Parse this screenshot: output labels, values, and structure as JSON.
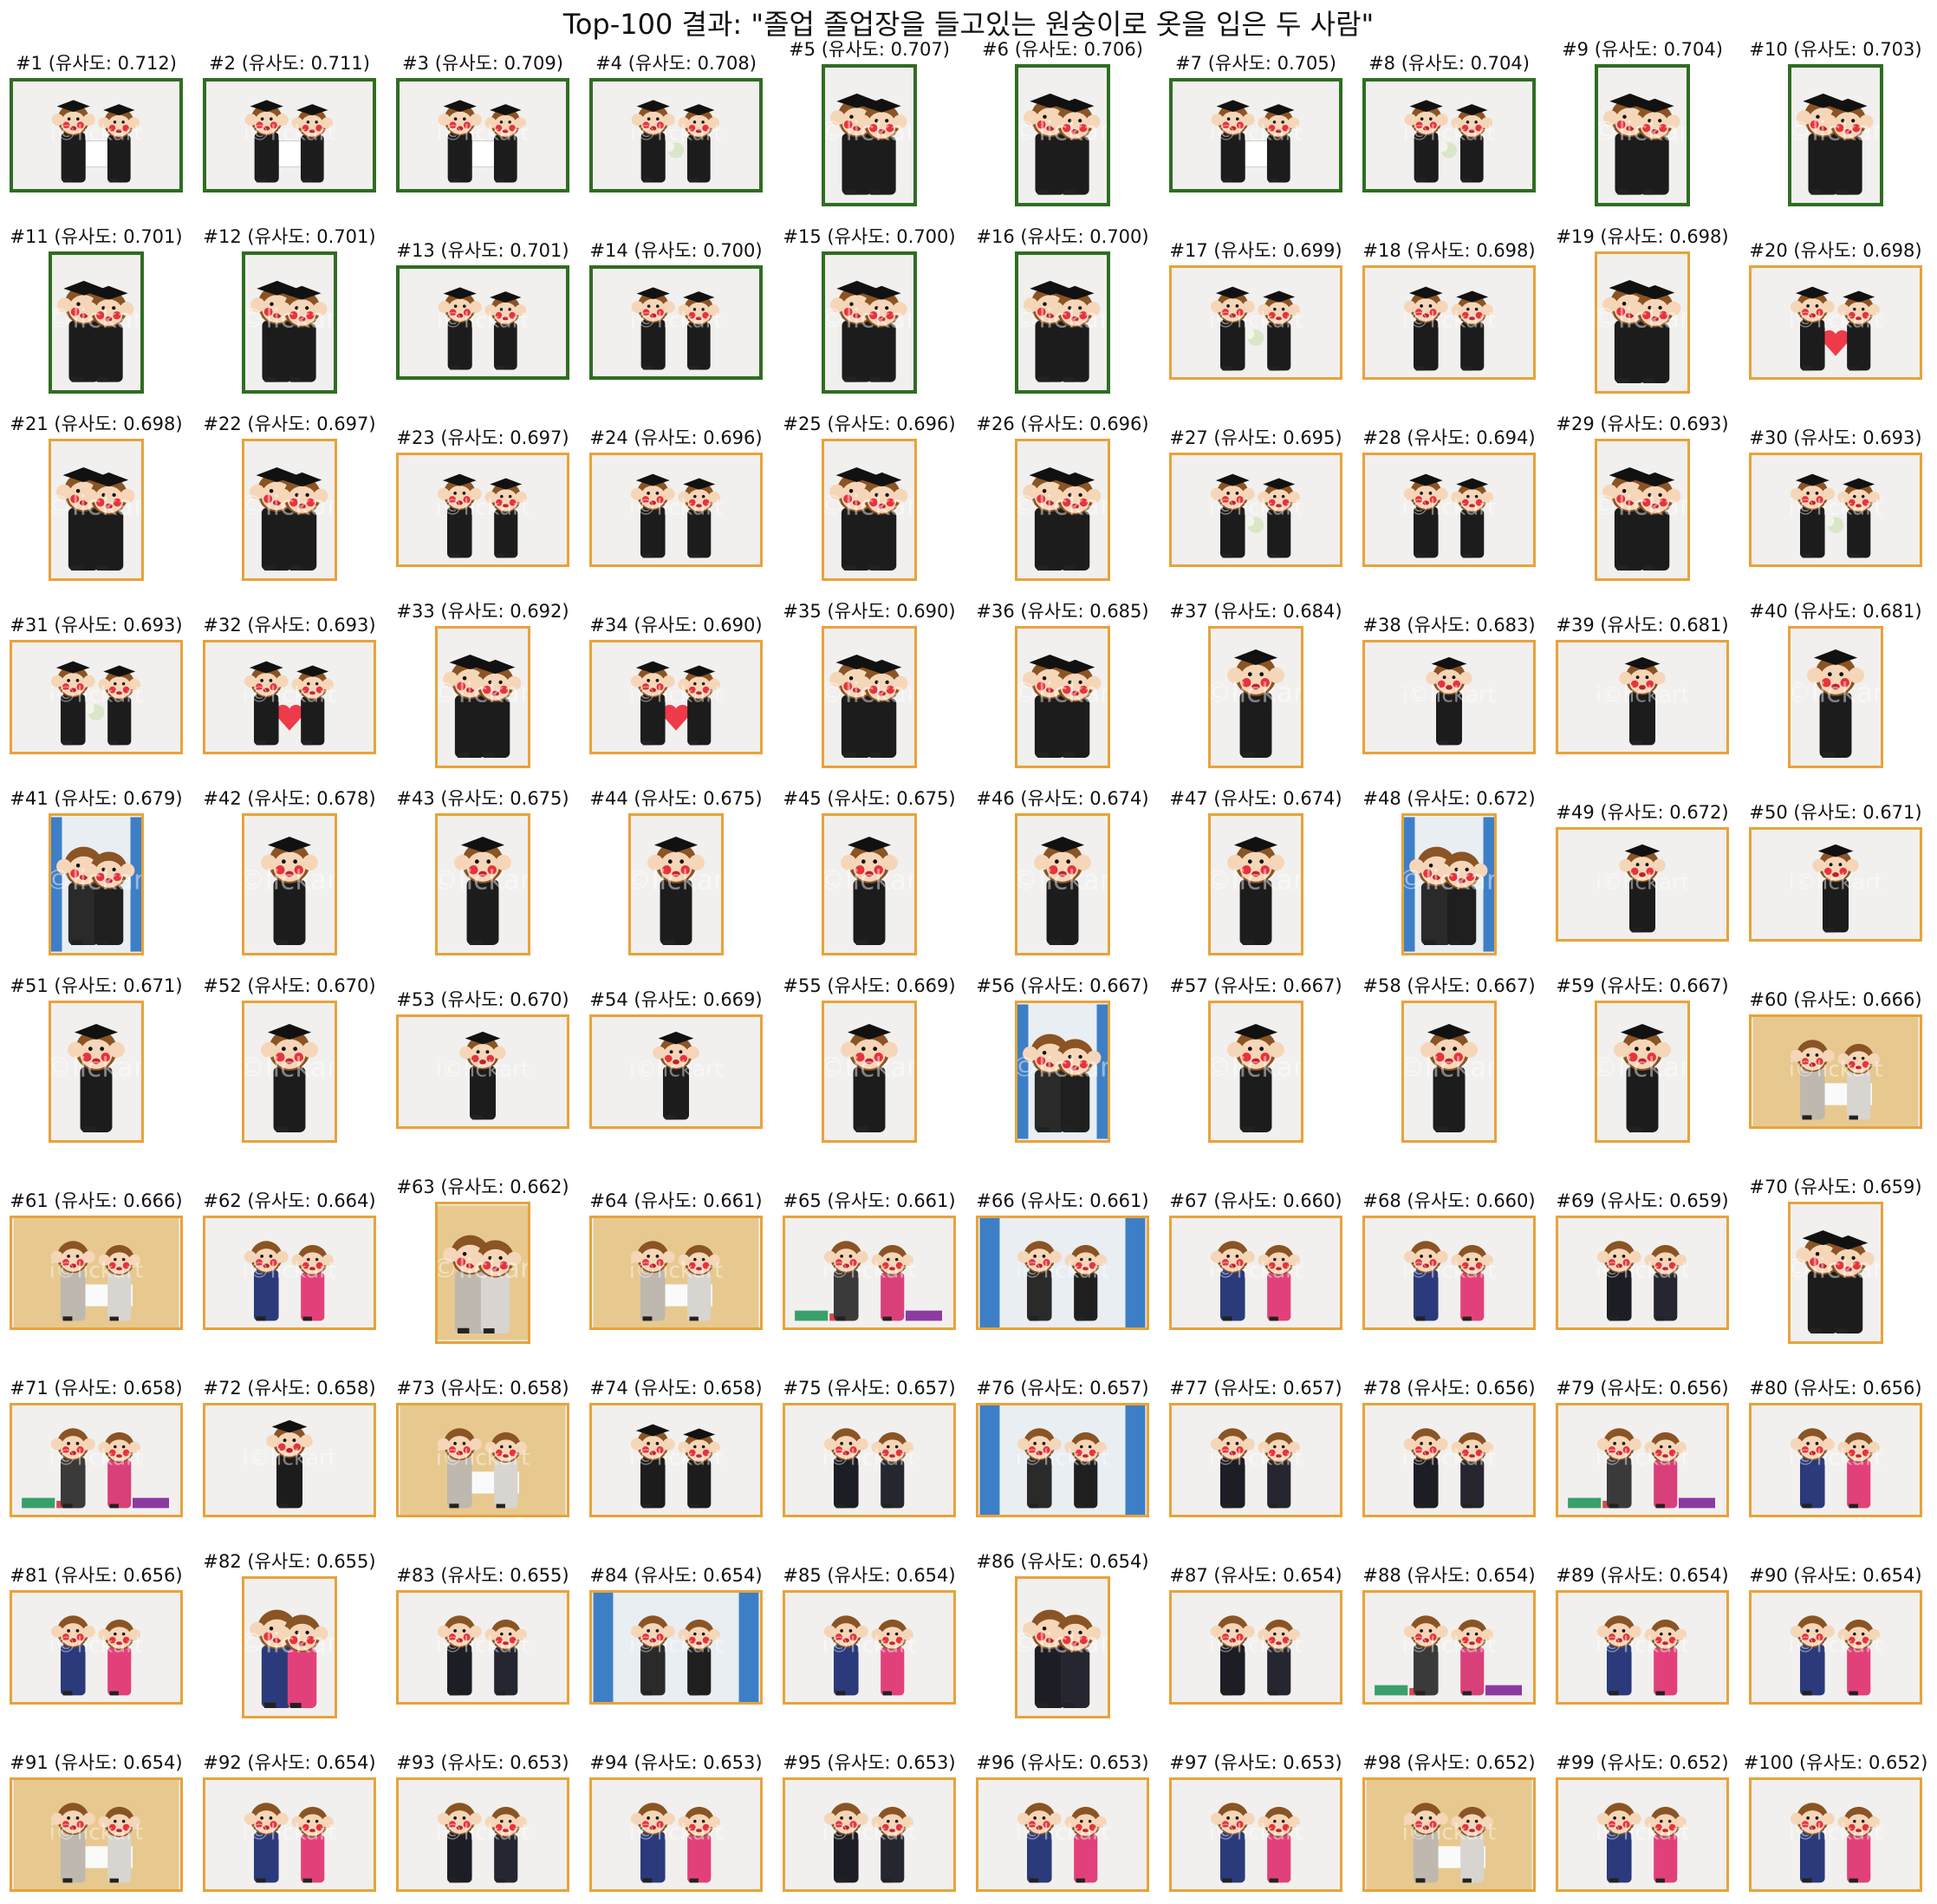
{
  "title": "Top-100 결과: \"졸업 졸업장을 들고있는 원숭이로 옷을 입은 두 사람\"",
  "colors": {
    "top_border": "#2f6d22",
    "other_border": "#e8a33a",
    "mascot_face": "#f6d6b8",
    "mascot_fur": "#8a5424",
    "gown": "#1c1c1c",
    "cheek": "#e8323c"
  },
  "watermark": "i©lickart",
  "results": [
    {
      "caption": "#1 (유사도: 0.712)",
      "highlight": true,
      "orient": "land",
      "scene": "sign"
    },
    {
      "caption": "#2 (유사도: 0.711)",
      "highlight": true,
      "orient": "land",
      "scene": "sign"
    },
    {
      "caption": "#3 (유사도: 0.709)",
      "highlight": true,
      "orient": "land",
      "scene": "sign"
    },
    {
      "caption": "#4 (유사도: 0.708)",
      "highlight": true,
      "orient": "land",
      "scene": "bouquet"
    },
    {
      "caption": "#5 (유사도: 0.707)",
      "highlight": true,
      "orient": "port",
      "scene": "sign"
    },
    {
      "caption": "#6 (유사도: 0.706)",
      "highlight": true,
      "orient": "port",
      "scene": "sign"
    },
    {
      "caption": "#7 (유사도: 0.705)",
      "highlight": true,
      "orient": "land",
      "scene": "sign"
    },
    {
      "caption": "#8 (유사도: 0.704)",
      "highlight": true,
      "orient": "land",
      "scene": "bouquet"
    },
    {
      "caption": "#9 (유사도: 0.704)",
      "highlight": true,
      "orient": "port",
      "scene": "bouquet"
    },
    {
      "caption": "#10 (유사도: 0.703)",
      "highlight": true,
      "orient": "port",
      "scene": "sign"
    },
    {
      "caption": "#11 (유사도: 0.701)",
      "highlight": true,
      "orient": "port",
      "scene": "sign"
    },
    {
      "caption": "#12 (유사도: 0.701)",
      "highlight": true,
      "orient": "port",
      "scene": "bouquet"
    },
    {
      "caption": "#13 (유사도: 0.701)",
      "highlight": true,
      "orient": "land",
      "scene": "duo"
    },
    {
      "caption": "#14 (유사도: 0.700)",
      "highlight": true,
      "orient": "land",
      "scene": "duo"
    },
    {
      "caption": "#15 (유사도: 0.700)",
      "highlight": true,
      "orient": "port",
      "scene": "duo"
    },
    {
      "caption": "#16 (유사도: 0.700)",
      "highlight": true,
      "orient": "port",
      "scene": "duo"
    },
    {
      "caption": "#17 (유사도: 0.699)",
      "highlight": false,
      "orient": "land",
      "scene": "bouquet"
    },
    {
      "caption": "#18 (유사도: 0.698)",
      "highlight": false,
      "orient": "land",
      "scene": "duo"
    },
    {
      "caption": "#19 (유사도: 0.698)",
      "highlight": false,
      "orient": "port",
      "scene": "duo"
    },
    {
      "caption": "#20 (유사도: 0.698)",
      "highlight": false,
      "orient": "land",
      "scene": "heart"
    },
    {
      "caption": "#21 (유사도: 0.698)",
      "highlight": false,
      "orient": "port",
      "scene": "heart"
    },
    {
      "caption": "#22 (유사도: 0.697)",
      "highlight": false,
      "orient": "port",
      "scene": "duo"
    },
    {
      "caption": "#23 (유사도: 0.697)",
      "highlight": false,
      "orient": "land",
      "scene": "duo"
    },
    {
      "caption": "#24 (유사도: 0.696)",
      "highlight": false,
      "orient": "land",
      "scene": "duo"
    },
    {
      "caption": "#25 (유사도: 0.696)",
      "highlight": false,
      "orient": "port",
      "scene": "duo"
    },
    {
      "caption": "#26 (유사도: 0.696)",
      "highlight": false,
      "orient": "port",
      "scene": "duo"
    },
    {
      "caption": "#27 (유사도: 0.695)",
      "highlight": false,
      "orient": "land",
      "scene": "bouquet"
    },
    {
      "caption": "#28 (유사도: 0.694)",
      "highlight": false,
      "orient": "land",
      "scene": "duo"
    },
    {
      "caption": "#29 (유사도: 0.693)",
      "highlight": false,
      "orient": "port",
      "scene": "duo"
    },
    {
      "caption": "#30 (유사도: 0.693)",
      "highlight": false,
      "orient": "land",
      "scene": "bouquet"
    },
    {
      "caption": "#31 (유사도: 0.693)",
      "highlight": false,
      "orient": "land",
      "scene": "bouquet"
    },
    {
      "caption": "#32 (유사도: 0.693)",
      "highlight": false,
      "orient": "land",
      "scene": "heart"
    },
    {
      "caption": "#33 (유사도: 0.692)",
      "highlight": false,
      "orient": "port",
      "scene": "duo"
    },
    {
      "caption": "#34 (유사도: 0.690)",
      "highlight": false,
      "orient": "land",
      "scene": "heart"
    },
    {
      "caption": "#35 (유사도: 0.690)",
      "highlight": false,
      "orient": "port",
      "scene": "heart"
    },
    {
      "caption": "#36 (유사도: 0.685)",
      "highlight": false,
      "orient": "port",
      "scene": "heart"
    },
    {
      "caption": "#37 (유사도: 0.684)",
      "highlight": false,
      "orient": "port",
      "scene": "solo"
    },
    {
      "caption": "#38 (유사도: 0.683)",
      "highlight": false,
      "orient": "land",
      "scene": "solo"
    },
    {
      "caption": "#39 (유사도: 0.681)",
      "highlight": false,
      "orient": "land",
      "scene": "solo"
    },
    {
      "caption": "#40 (유사도: 0.681)",
      "highlight": false,
      "orient": "port",
      "scene": "solo"
    },
    {
      "caption": "#41 (유사도: 0.679)",
      "highlight": false,
      "orient": "port",
      "scene": "hall"
    },
    {
      "caption": "#42 (유사도: 0.678)",
      "highlight": false,
      "orient": "port",
      "scene": "solo"
    },
    {
      "caption": "#43 (유사도: 0.675)",
      "highlight": false,
      "orient": "port",
      "scene": "solo"
    },
    {
      "caption": "#44 (유사도: 0.675)",
      "highlight": false,
      "orient": "port",
      "scene": "solo"
    },
    {
      "caption": "#45 (유사도: 0.675)",
      "highlight": false,
      "orient": "port",
      "scene": "solo"
    },
    {
      "caption": "#46 (유사도: 0.674)",
      "highlight": false,
      "orient": "port",
      "scene": "solo"
    },
    {
      "caption": "#47 (유사도: 0.674)",
      "highlight": false,
      "orient": "port",
      "scene": "solo"
    },
    {
      "caption": "#48 (유사도: 0.672)",
      "highlight": false,
      "orient": "port",
      "scene": "hall"
    },
    {
      "caption": "#49 (유사도: 0.672)",
      "highlight": false,
      "orient": "land",
      "scene": "solo"
    },
    {
      "caption": "#50 (유사도: 0.671)",
      "highlight": false,
      "orient": "land",
      "scene": "solo"
    },
    {
      "caption": "#51 (유사도: 0.671)",
      "highlight": false,
      "orient": "port",
      "scene": "solo"
    },
    {
      "caption": "#52 (유사도: 0.670)",
      "highlight": false,
      "orient": "port",
      "scene": "solo"
    },
    {
      "caption": "#53 (유사도: 0.670)",
      "highlight": false,
      "orient": "land",
      "scene": "solo"
    },
    {
      "caption": "#54 (유사도: 0.669)",
      "highlight": false,
      "orient": "land",
      "scene": "solo"
    },
    {
      "caption": "#55 (유사도: 0.669)",
      "highlight": false,
      "orient": "port",
      "scene": "solo"
    },
    {
      "caption": "#56 (유사도: 0.667)",
      "highlight": false,
      "orient": "port",
      "scene": "hall"
    },
    {
      "caption": "#57 (유사도: 0.667)",
      "highlight": false,
      "orient": "port",
      "scene": "solo"
    },
    {
      "caption": "#58 (유사도: 0.667)",
      "highlight": false,
      "orient": "port",
      "scene": "solo"
    },
    {
      "caption": "#59 (유사도: 0.667)",
      "highlight": false,
      "orient": "port",
      "scene": "solo"
    },
    {
      "caption": "#60 (유사도: 0.666)",
      "highlight": false,
      "orient": "land",
      "scene": "beige"
    },
    {
      "caption": "#61 (유사도: 0.666)",
      "highlight": false,
      "orient": "land",
      "scene": "beige"
    },
    {
      "caption": "#62 (유사도: 0.664)",
      "highlight": false,
      "orient": "land",
      "scene": "hanbok"
    },
    {
      "caption": "#63 (유사도: 0.662)",
      "highlight": false,
      "orient": "port",
      "scene": "beige"
    },
    {
      "caption": "#64 (유사도: 0.661)",
      "highlight": false,
      "orient": "land",
      "scene": "beige"
    },
    {
      "caption": "#65 (유사도: 0.661)",
      "highlight": false,
      "orient": "land",
      "scene": "gifts"
    },
    {
      "caption": "#66 (유사도: 0.661)",
      "highlight": false,
      "orient": "land",
      "scene": "hall"
    },
    {
      "caption": "#67 (유사도: 0.660)",
      "highlight": false,
      "orient": "land",
      "scene": "hanbok"
    },
    {
      "caption": "#68 (유사도: 0.660)",
      "highlight": false,
      "orient": "land",
      "scene": "hanbok"
    },
    {
      "caption": "#69 (유사도: 0.659)",
      "highlight": false,
      "orient": "land",
      "scene": "suit"
    },
    {
      "caption": "#70 (유사도: 0.659)",
      "highlight": false,
      "orient": "port",
      "scene": "people"
    },
    {
      "caption": "#71 (유사도: 0.658)",
      "highlight": false,
      "orient": "land",
      "scene": "gifts"
    },
    {
      "caption": "#72 (유사도: 0.658)",
      "highlight": false,
      "orient": "land",
      "scene": "solo"
    },
    {
      "caption": "#73 (유사도: 0.658)",
      "highlight": false,
      "orient": "land",
      "scene": "beige"
    },
    {
      "caption": "#74 (유사도: 0.658)",
      "highlight": false,
      "orient": "land",
      "scene": "people"
    },
    {
      "caption": "#75 (유사도: 0.657)",
      "highlight": false,
      "orient": "land",
      "scene": "suit"
    },
    {
      "caption": "#76 (유사도: 0.657)",
      "highlight": false,
      "orient": "land",
      "scene": "hall"
    },
    {
      "caption": "#77 (유사도: 0.657)",
      "highlight": false,
      "orient": "land",
      "scene": "suit"
    },
    {
      "caption": "#78 (유사도: 0.656)",
      "highlight": false,
      "orient": "land",
      "scene": "suit"
    },
    {
      "caption": "#79 (유사도: 0.656)",
      "highlight": false,
      "orient": "land",
      "scene": "gifts"
    },
    {
      "caption": "#80 (유사도: 0.656)",
      "highlight": false,
      "orient": "land",
      "scene": "hanbok"
    },
    {
      "caption": "#81 (유사도: 0.656)",
      "highlight": false,
      "orient": "land",
      "scene": "hanbok"
    },
    {
      "caption": "#82 (유사도: 0.655)",
      "highlight": false,
      "orient": "port",
      "scene": "hanbok"
    },
    {
      "caption": "#83 (유사도: 0.655)",
      "highlight": false,
      "orient": "land",
      "scene": "suit"
    },
    {
      "caption": "#84 (유사도: 0.654)",
      "highlight": false,
      "orient": "land",
      "scene": "hall"
    },
    {
      "caption": "#85 (유사도: 0.654)",
      "highlight": false,
      "orient": "land",
      "scene": "hanbok"
    },
    {
      "caption": "#86 (유사도: 0.654)",
      "highlight": false,
      "orient": "port",
      "scene": "suit"
    },
    {
      "caption": "#87 (유사도: 0.654)",
      "highlight": false,
      "orient": "land",
      "scene": "suit"
    },
    {
      "caption": "#88 (유사도: 0.654)",
      "highlight": false,
      "orient": "land",
      "scene": "gifts"
    },
    {
      "caption": "#89 (유사도: 0.654)",
      "highlight": false,
      "orient": "land",
      "scene": "hanbok"
    },
    {
      "caption": "#90 (유사도: 0.654)",
      "highlight": false,
      "orient": "land",
      "scene": "hanbok"
    },
    {
      "caption": "#91 (유사도: 0.654)",
      "highlight": false,
      "orient": "land",
      "scene": "beige"
    },
    {
      "caption": "#92 (유사도: 0.654)",
      "highlight": false,
      "orient": "land",
      "scene": "hanbok"
    },
    {
      "caption": "#93 (유사도: 0.653)",
      "highlight": false,
      "orient": "land",
      "scene": "suit"
    },
    {
      "caption": "#94 (유사도: 0.653)",
      "highlight": false,
      "orient": "land",
      "scene": "hanbok"
    },
    {
      "caption": "#95 (유사도: 0.653)",
      "highlight": false,
      "orient": "land",
      "scene": "suit"
    },
    {
      "caption": "#96 (유사도: 0.653)",
      "highlight": false,
      "orient": "land",
      "scene": "hanbok"
    },
    {
      "caption": "#97 (유사도: 0.653)",
      "highlight": false,
      "orient": "land",
      "scene": "hanbok"
    },
    {
      "caption": "#98 (유사도: 0.652)",
      "highlight": false,
      "orient": "land",
      "scene": "beige"
    },
    {
      "caption": "#99 (유사도: 0.652)",
      "highlight": false,
      "orient": "land",
      "scene": "hanbok"
    },
    {
      "caption": "#100 (유사도: 0.652)",
      "highlight": false,
      "orient": "land",
      "scene": "hanbok"
    }
  ]
}
